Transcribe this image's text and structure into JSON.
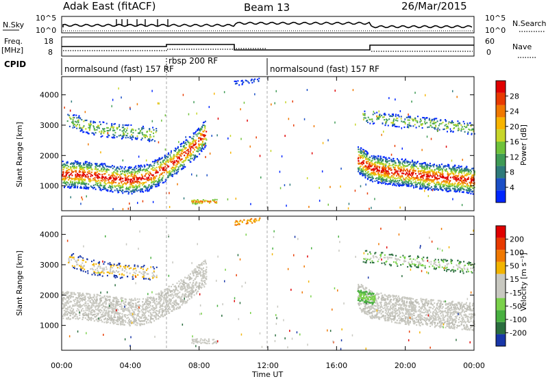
{
  "header": {
    "radar": "Adak East (fitACF)",
    "beam": "Beam 13",
    "date": "26/Mar/2015"
  },
  "panels": {
    "noise": {
      "left_label": "N.Sky",
      "right_label": "N.Search",
      "left_ticks": [
        "10^5",
        "10^0"
      ],
      "right_ticks": [
        "10^5",
        "10^0"
      ]
    },
    "freq": {
      "left_label": "Freq.",
      "left_unit": "[MHz]",
      "left_ticks": [
        "18",
        "8"
      ],
      "right_label": "Nave",
      "right_ticks": [
        "60",
        "0"
      ]
    },
    "cpid": {
      "label": "CPID",
      "segments": [
        "normalsound (fast) 157 RF",
        "rbsp 200 RF",
        "normalsound (fast) 157 RF"
      ]
    }
  },
  "chart_data": [
    {
      "type": "heatmap",
      "title": "Power",
      "ylabel": "Slant Range [km]",
      "ylim": [
        180,
        4600
      ],
      "xlim_hours": [
        0,
        24
      ],
      "yticks": [
        "1000",
        "2000",
        "3000",
        "4000"
      ],
      "colorbar": {
        "label": "Power [dB]",
        "ticks": [
          "28",
          "24",
          "20",
          "16",
          "12",
          "8",
          "4"
        ],
        "colors": [
          "#0026ff",
          "#1b4fc6",
          "#2e7a7a",
          "#3f9b55",
          "#6fc23a",
          "#c7d62a",
          "#f7b400",
          "#f07800",
          "#e83a00",
          "#e00000"
        ]
      },
      "bands": [
        {
          "x": [
            0.0,
            1.0,
            2.0,
            3.0,
            4.0,
            5.0,
            6.0,
            7.0,
            7.8,
            8.4
          ],
          "y": [
            1400,
            1400,
            1350,
            1250,
            1200,
            1300,
            1600,
            2000,
            2400,
            2800
          ],
          "level": 28
        },
        {
          "x": [
            17.2,
            18.0,
            19.0,
            20.0,
            21.0,
            22.0,
            23.0,
            24.0
          ],
          "y": [
            1900,
            1600,
            1500,
            1450,
            1350,
            1300,
            1250,
            1200
          ],
          "level": 28
        }
      ]
    },
    {
      "type": "heatmap",
      "title": "Velocity",
      "ylabel": "Slant Range [km]",
      "ylim": [
        180,
        4600
      ],
      "xlim_hours": [
        0,
        24
      ],
      "yticks": [
        "1000",
        "2000",
        "3000",
        "4000"
      ],
      "colorbar": {
        "label": "Velocity [m s⁻¹]",
        "ticks": [
          "200",
          "100",
          "50",
          "15",
          "-15",
          "-50",
          "-100",
          "-200"
        ],
        "colors": [
          "#1836a8",
          "#2a6e3e",
          "#48b040",
          "#7ad14a",
          "#c8c8c0",
          "#c8c8c0",
          "#f2b400",
          "#f07800",
          "#e83a00",
          "#e00000"
        ]
      }
    }
  ],
  "x_axis": {
    "label": "Time UT",
    "ticks": [
      "00:00",
      "04:00",
      "08:00",
      "12:00",
      "16:00",
      "20:00",
      "00:00"
    ]
  }
}
